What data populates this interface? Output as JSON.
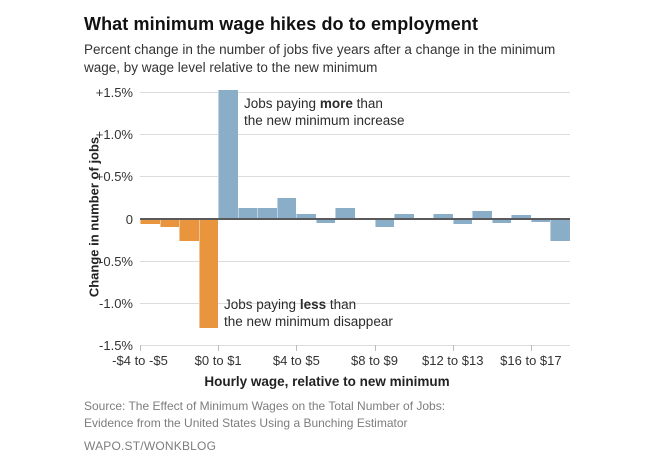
{
  "header": {
    "title": "What minimum wage hikes do to employment",
    "subtitle": "Percent change in the number of jobs five years after a change in the minimum wage, by wage level relative to the new minimum"
  },
  "chart_data": {
    "type": "bar",
    "title": "What minimum wage hikes do to employment",
    "xlabel": "Hourly wage, relative to new minimum",
    "ylabel": "Change in number of jobs",
    "ylim": [
      -1.5,
      1.55
    ],
    "grid": true,
    "bar_values": [
      -0.06,
      -0.1,
      -0.27,
      -1.3,
      1.53,
      0.13,
      0.13,
      0.25,
      0.05,
      -0.05,
      0.12,
      0.01,
      -0.1,
      0.05,
      0.0,
      0.05,
      -0.06,
      0.09,
      -0.05,
      0.04,
      -0.04,
      -0.27
    ],
    "below_minimum_bar_count": 4,
    "colors": {
      "above_minimum_bar": "#8AAEC8",
      "below_minimum_bar": "#E8953E",
      "zero_line": "#5A5A5C",
      "gridline": "#DCDCDC"
    },
    "y_ticks": [
      {
        "v": 1.5,
        "label": "+1.5%"
      },
      {
        "v": 1.0,
        "label": "+1.0%"
      },
      {
        "v": 0.5,
        "label": "+0.5%"
      },
      {
        "v": 0,
        "label": "0"
      },
      {
        "v": -0.5,
        "label": "-0.5%"
      },
      {
        "v": -1.0,
        "label": "-1.0%"
      },
      {
        "v": -1.5,
        "label": "-1.5%"
      }
    ],
    "x_ticks": [
      {
        "bar_index": 0,
        "label": "-$4 to -$5"
      },
      {
        "bar_index": 4,
        "label": "$0 to $1"
      },
      {
        "bar_index": 8,
        "label": "$4 to $5"
      },
      {
        "bar_index": 12,
        "label": "$8 to $9"
      },
      {
        "bar_index": 16,
        "label": "$12 to $13"
      },
      {
        "bar_index": 20,
        "label": "$16 to $17"
      }
    ],
    "annotations": [
      {
        "line1_pre": "Jobs paying ",
        "bold": "more",
        "line1_post": " than",
        "line2": "the new minimum increase"
      },
      {
        "line1_pre": "Jobs paying ",
        "bold": "less",
        "line1_post": " than",
        "line2": "the new minimum disappear"
      }
    ]
  },
  "source": {
    "line1": "Source: The Effect of Minimum Wages on the Total Number of Jobs:",
    "line2": "Evidence from the United States Using a Bunching Estimator",
    "line3": "WAPO.ST/WONKBLOG"
  }
}
